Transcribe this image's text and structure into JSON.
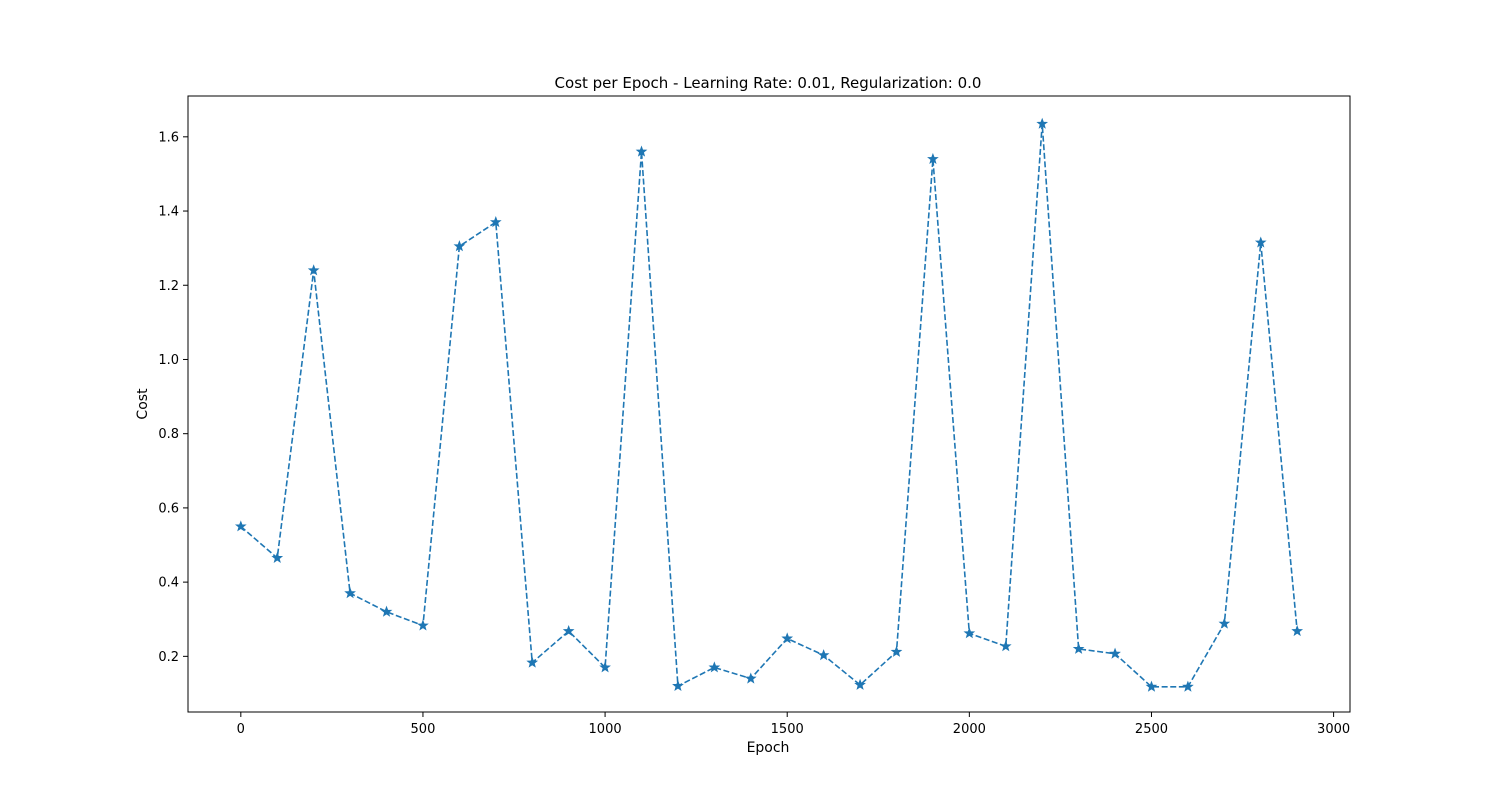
{
  "chart_data": {
    "type": "line",
    "title": "Cost per Epoch - Learning Rate: 0.01, Regularization: 0.0",
    "xlabel": "Epoch",
    "ylabel": "Cost",
    "xlim": [
      -145,
      3045
    ],
    "ylim": [
      0.05,
      1.71
    ],
    "xticks": [
      0,
      500,
      1000,
      1500,
      2000,
      2500,
      3000
    ],
    "xtick_labels": [
      "0",
      "500",
      "1000",
      "1500",
      "2000",
      "2500",
      "3000"
    ],
    "yticks": [
      0.2,
      0.4,
      0.6,
      0.8,
      1.0,
      1.2,
      1.4,
      1.6
    ],
    "ytick_labels": [
      "0.2",
      "0.4",
      "0.6",
      "0.8",
      "1.0",
      "1.2",
      "1.4",
      "1.6"
    ],
    "grid": false,
    "series": [
      {
        "color": "#1f77b4",
        "line_style": "dashed",
        "marker": "star",
        "x": [
          0,
          100,
          200,
          300,
          400,
          500,
          600,
          700,
          800,
          900,
          1000,
          1100,
          1200,
          1300,
          1400,
          1500,
          1600,
          1700,
          1800,
          1900,
          2000,
          2100,
          2200,
          2300,
          2400,
          2500,
          2600,
          2700,
          2800,
          2900
        ],
        "y": [
          0.55,
          0.465,
          1.24,
          0.37,
          0.32,
          0.283,
          1.305,
          1.37,
          0.183,
          0.268,
          0.17,
          1.56,
          0.12,
          0.17,
          0.14,
          0.248,
          0.203,
          0.123,
          0.212,
          1.54,
          0.262,
          0.227,
          1.635,
          0.22,
          0.207,
          0.118,
          0.118,
          0.288,
          1.315,
          0.268
        ]
      }
    ]
  }
}
